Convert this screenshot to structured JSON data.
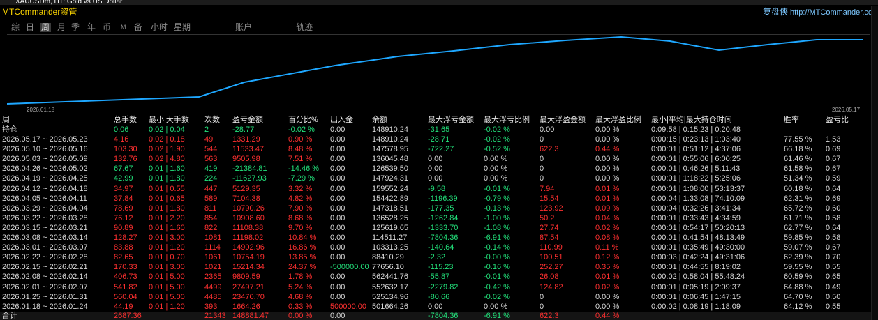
{
  "window_title": "XAUUSDm, H1:  Gold vs US Dollar",
  "header": {
    "title": "MTCommander资管",
    "brand": "复盘侠",
    "url": "http://MTCommander.com"
  },
  "tabs": [
    "综",
    "日",
    "周",
    "月",
    "季",
    "年",
    "币",
    "M",
    "备",
    "小时",
    "星期",
    "账户",
    "轨迹"
  ],
  "active_tab": 2,
  "chart": {
    "start_label": "2026.01.18",
    "end_label": "2026.05.17"
  },
  "table": {
    "columns": [
      "周",
      "总手数",
      "最小|大手数",
      "次数",
      "盈亏金额",
      "百分比%",
      "出入金",
      "余额",
      "最大浮亏金额",
      "最大浮亏比例",
      "最大浮盈金额",
      "最大浮盈比例",
      "最小|平均|最大持仓时间",
      "胜率",
      "盈亏比"
    ],
    "rows": [
      {
        "cells": [
          "持仓",
          "0.06",
          "0.02 | 0.04",
          "2",
          "-28.77",
          "-0.02 %",
          "0.00",
          "148910.24",
          "-31.65",
          "-0.02 %",
          "0.00",
          "0.00 %",
          "0:09:58 | 0:15:23 | 0:20:48",
          null,
          null
        ],
        "colors": [
          "#d8d8d8",
          "#22e07a",
          "#22e07a",
          "#22e07a",
          "#22e07a",
          "#22e07a",
          "#d8d8d8",
          "#d8d8d8",
          "#22e07a",
          "#22e07a",
          "#d8d8d8",
          "#d8d8d8",
          "#d8d8d8",
          null,
          null
        ]
      },
      {
        "cells": [
          "2026.05.17 ~ 2026.05.23",
          "4.16",
          "0.02 | 0.18",
          "49",
          "1331.29",
          "0.90 %",
          "0.00",
          "148910.24",
          "-28.71",
          "-0.02 %",
          "0",
          "0.00 %",
          "0:00:15 | 0:23:13 | 1:03:40",
          "77.55 %",
          "1.53"
        ],
        "colors": [
          "#d8d8d8",
          "#ff3030",
          "#ff3030",
          "#ff3030",
          "#ff3030",
          "#ff3030",
          "#d8d8d8",
          "#d8d8d8",
          "#22e07a",
          "#22e07a",
          "#d8d8d8",
          "#d8d8d8",
          "#d8d8d8",
          "#d8d8d8",
          "#d8d8d8"
        ]
      },
      {
        "cells": [
          "2026.05.10 ~ 2026.05.16",
          "103.30",
          "0.02 | 1.90",
          "544",
          "11533.47",
          "8.48 %",
          "0.00",
          "147578.95",
          "-722.27",
          "-0.52 %",
          "622.3",
          "0.44 %",
          "0:00:01 | 0:51:12 | 4:37:06",
          "66.18 %",
          "0.69"
        ],
        "colors": [
          "#d8d8d8",
          "#ff3030",
          "#ff3030",
          "#ff3030",
          "#ff3030",
          "#ff3030",
          "#d8d8d8",
          "#d8d8d8",
          "#22e07a",
          "#22e07a",
          "#ff3030",
          "#ff3030",
          "#d8d8d8",
          "#d8d8d8",
          "#d8d8d8"
        ]
      },
      {
        "cells": [
          "2026.05.03 ~ 2026.05.09",
          "132.76",
          "0.02 | 4.80",
          "563",
          "9505.98",
          "7.51 %",
          "0.00",
          "136045.48",
          "0.00",
          "0.00 %",
          "0",
          "0.00 %",
          "0:00:01 | 0:55:06 | 6:00:25",
          "61.46 %",
          "0.67"
        ],
        "colors": [
          "#d8d8d8",
          "#ff3030",
          "#ff3030",
          "#ff3030",
          "#ff3030",
          "#ff3030",
          "#d8d8d8",
          "#d8d8d8",
          "#d8d8d8",
          "#d8d8d8",
          "#d8d8d8",
          "#d8d8d8",
          "#d8d8d8",
          "#d8d8d8",
          "#d8d8d8"
        ]
      },
      {
        "cells": [
          "2026.04.26 ~ 2026.05.02",
          "67.67",
          "0.01 | 1.60",
          "419",
          "-21384.81",
          "-14.46 %",
          "0.00",
          "126539.50",
          "0.00",
          "0.00 %",
          "0",
          "0.00 %",
          "0:00:01 | 0:46:26 | 5:11:43",
          "61.58 %",
          "0.67"
        ],
        "colors": [
          "#d8d8d8",
          "#22e07a",
          "#22e07a",
          "#22e07a",
          "#22e07a",
          "#22e07a",
          "#d8d8d8",
          "#d8d8d8",
          "#d8d8d8",
          "#d8d8d8",
          "#d8d8d8",
          "#d8d8d8",
          "#d8d8d8",
          "#d8d8d8",
          "#d8d8d8"
        ]
      },
      {
        "cells": [
          "2026.04.19 ~ 2026.04.25",
          "42.99",
          "0.01 | 1.80",
          "224",
          "-11627.93",
          "-7.29 %",
          "0.00",
          "147924.31",
          "0.00",
          "0.00 %",
          "0",
          "0.00 %",
          "0:00:01 | 1:18:22 | 5:25:06",
          "51.34 %",
          "0.59"
        ],
        "colors": [
          "#d8d8d8",
          "#22e07a",
          "#22e07a",
          "#22e07a",
          "#22e07a",
          "#22e07a",
          "#d8d8d8",
          "#d8d8d8",
          "#d8d8d8",
          "#d8d8d8",
          "#d8d8d8",
          "#d8d8d8",
          "#d8d8d8",
          "#d8d8d8",
          "#d8d8d8"
        ]
      },
      {
        "cells": [
          "2026.04.12 ~ 2026.04.18",
          "34.97",
          "0.01 | 0.55",
          "447",
          "5129.35",
          "3.32 %",
          "0.00",
          "159552.24",
          "-9.58",
          "-0.01 %",
          "7.94",
          "0.01 %",
          "0:00:01 | 1:08:00 | 53:13:37",
          "60.18 %",
          "0.64"
        ],
        "colors": [
          "#d8d8d8",
          "#ff3030",
          "#ff3030",
          "#ff3030",
          "#ff3030",
          "#ff3030",
          "#d8d8d8",
          "#d8d8d8",
          "#22e07a",
          "#22e07a",
          "#ff3030",
          "#ff3030",
          "#d8d8d8",
          "#d8d8d8",
          "#d8d8d8"
        ]
      },
      {
        "cells": [
          "2026.04.05 ~ 2026.04.11",
          "37.84",
          "0.01 | 0.65",
          "589",
          "7104.38",
          "4.82 %",
          "0.00",
          "154422.89",
          "-1196.39",
          "-0.79 %",
          "15.54",
          "0.01 %",
          "0:00:04 | 1:33:08 | 74:10:09",
          "62.31 %",
          "0.69"
        ],
        "colors": [
          "#d8d8d8",
          "#ff3030",
          "#ff3030",
          "#ff3030",
          "#ff3030",
          "#ff3030",
          "#d8d8d8",
          "#d8d8d8",
          "#22e07a",
          "#22e07a",
          "#ff3030",
          "#ff3030",
          "#d8d8d8",
          "#d8d8d8",
          "#d8d8d8"
        ]
      },
      {
        "cells": [
          "2026.03.29 ~ 2026.04.04",
          "78.69",
          "0.01 | 1.80",
          "811",
          "10790.26",
          "7.90 %",
          "0.00",
          "147318.51",
          "-177.35",
          "-0.13 %",
          "123.92",
          "0.09 %",
          "0:00:04 | 0:32:26 | 3:41:34",
          "65.72 %",
          "0.60"
        ],
        "colors": [
          "#d8d8d8",
          "#ff3030",
          "#ff3030",
          "#ff3030",
          "#ff3030",
          "#ff3030",
          "#d8d8d8",
          "#d8d8d8",
          "#22e07a",
          "#22e07a",
          "#ff3030",
          "#ff3030",
          "#d8d8d8",
          "#d8d8d8",
          "#d8d8d8"
        ]
      },
      {
        "cells": [
          "2026.03.22 ~ 2026.03.28",
          "76.12",
          "0.01 | 2.20",
          "854",
          "10908.60",
          "8.68 %",
          "0.00",
          "136528.25",
          "-1262.84",
          "-1.00 %",
          "50.2",
          "0.04 %",
          "0:00:01 | 0:33:43 | 4:34:59",
          "61.71 %",
          "0.58"
        ],
        "colors": [
          "#d8d8d8",
          "#ff3030",
          "#ff3030",
          "#ff3030",
          "#ff3030",
          "#ff3030",
          "#d8d8d8",
          "#d8d8d8",
          "#22e07a",
          "#22e07a",
          "#ff3030",
          "#ff3030",
          "#d8d8d8",
          "#d8d8d8",
          "#d8d8d8"
        ]
      },
      {
        "cells": [
          "2026.03.15 ~ 2026.03.21",
          "90.89",
          "0.01 | 1.60",
          "822",
          "11108.38",
          "9.70 %",
          "0.00",
          "125619.65",
          "-1333.70",
          "-1.08 %",
          "27.74",
          "0.02 %",
          "0:00:01 | 0:54:17 | 50:20:13",
          "62.77 %",
          "0.64"
        ],
        "colors": [
          "#d8d8d8",
          "#ff3030",
          "#ff3030",
          "#ff3030",
          "#ff3030",
          "#ff3030",
          "#d8d8d8",
          "#d8d8d8",
          "#22e07a",
          "#22e07a",
          "#ff3030",
          "#ff3030",
          "#d8d8d8",
          "#d8d8d8",
          "#d8d8d8"
        ]
      },
      {
        "cells": [
          "2026.03.08 ~ 2026.03.14",
          "128.27",
          "0.01 | 3.00",
          "1081",
          "11198.02",
          "10.84 %",
          "0.00",
          "114511.27",
          "-7804.36",
          "-6.91 %",
          "87.54",
          "0.08 %",
          "0:00:01 | 0:41:54 | 48:13:49",
          "59.85 %",
          "0.58"
        ],
        "colors": [
          "#d8d8d8",
          "#ff3030",
          "#ff3030",
          "#ff3030",
          "#ff3030",
          "#ff3030",
          "#d8d8d8",
          "#d8d8d8",
          "#22e07a",
          "#22e07a",
          "#ff3030",
          "#ff3030",
          "#d8d8d8",
          "#d8d8d8",
          "#d8d8d8"
        ]
      },
      {
        "cells": [
          "2026.03.01 ~ 2026.03.07",
          "83.88",
          "0.01 | 1.20",
          "1114",
          "14902.96",
          "16.86 %",
          "0.00",
          "103313.25",
          "-140.64",
          "-0.14 %",
          "110.99",
          "0.11 %",
          "0:00:01 | 0:35:49 | 49:30:00",
          "59.07 %",
          "0.67"
        ],
        "colors": [
          "#d8d8d8",
          "#ff3030",
          "#ff3030",
          "#ff3030",
          "#ff3030",
          "#ff3030",
          "#d8d8d8",
          "#d8d8d8",
          "#22e07a",
          "#22e07a",
          "#ff3030",
          "#ff3030",
          "#d8d8d8",
          "#d8d8d8",
          "#d8d8d8"
        ]
      },
      {
        "cells": [
          "2026.02.22 ~ 2026.02.28",
          "82.65",
          "0.01 | 0.70",
          "1061",
          "10754.19",
          "13.85 %",
          "0.00",
          "88410.29",
          "-2.32",
          "-0.00 %",
          "100.51",
          "0.12 %",
          "0:00:03 | 0:42:24 | 49:31:06",
          "62.39 %",
          "0.70"
        ],
        "colors": [
          "#d8d8d8",
          "#ff3030",
          "#ff3030",
          "#ff3030",
          "#ff3030",
          "#ff3030",
          "#d8d8d8",
          "#d8d8d8",
          "#22e07a",
          "#22e07a",
          "#ff3030",
          "#ff3030",
          "#d8d8d8",
          "#d8d8d8",
          "#d8d8d8"
        ]
      },
      {
        "cells": [
          "2026.02.15 ~ 2026.02.21",
          "170.33",
          "0.01 | 3.00",
          "1021",
          "15214.34",
          "24.37 %",
          "-500000.00",
          "77656.10",
          "-115.23",
          "-0.16 %",
          "252.27",
          "0.35 %",
          "0:00:01 | 0:44:55 | 8:19:02",
          "59.55 %",
          "0.55"
        ],
        "colors": [
          "#d8d8d8",
          "#ff3030",
          "#ff3030",
          "#ff3030",
          "#ff3030",
          "#ff3030",
          "#22e07a",
          "#d8d8d8",
          "#22e07a",
          "#22e07a",
          "#ff3030",
          "#ff3030",
          "#d8d8d8",
          "#d8d8d8",
          "#d8d8d8"
        ]
      },
      {
        "cells": [
          "2026.02.08 ~ 2026.02.14",
          "406.73",
          "0.01 | 5.00",
          "2365",
          "9809.59",
          "1.78 %",
          "0.00",
          "562441.76",
          "-55.87",
          "-0.01 %",
          "26.08",
          "0.01 %",
          "0:00:02 | 0:58:04 | 55:48:24",
          "60.59 %",
          "0.65"
        ],
        "colors": [
          "#d8d8d8",
          "#ff3030",
          "#ff3030",
          "#ff3030",
          "#ff3030",
          "#ff3030",
          "#d8d8d8",
          "#d8d8d8",
          "#22e07a",
          "#22e07a",
          "#ff3030",
          "#ff3030",
          "#d8d8d8",
          "#d8d8d8",
          "#d8d8d8"
        ]
      },
      {
        "cells": [
          "2026.02.01 ~ 2026.02.07",
          "541.82",
          "0.01 | 5.00",
          "4499",
          "27497.21",
          "5.24 %",
          "0.00",
          "552632.17",
          "-2279.82",
          "-0.42 %",
          "124.82",
          "0.02 %",
          "0:00:01 | 0:05:19 | 2:09:37",
          "64.88 %",
          "0.49"
        ],
        "colors": [
          "#d8d8d8",
          "#ff3030",
          "#ff3030",
          "#ff3030",
          "#ff3030",
          "#ff3030",
          "#d8d8d8",
          "#d8d8d8",
          "#22e07a",
          "#22e07a",
          "#ff3030",
          "#ff3030",
          "#d8d8d8",
          "#d8d8d8",
          "#d8d8d8"
        ]
      },
      {
        "cells": [
          "2026.01.25 ~ 2026.01.31",
          "560.04",
          "0.01 | 5.00",
          "4485",
          "23470.70",
          "4.68 %",
          "0.00",
          "525134.96",
          "-80.66",
          "-0.02 %",
          "0",
          "0.00 %",
          "0:00:01 | 0:06:45 | 1:47:15",
          "64.70 %",
          "0.50"
        ],
        "colors": [
          "#d8d8d8",
          "#ff3030",
          "#ff3030",
          "#ff3030",
          "#ff3030",
          "#ff3030",
          "#d8d8d8",
          "#d8d8d8",
          "#22e07a",
          "#22e07a",
          "#d8d8d8",
          "#d8d8d8",
          "#d8d8d8",
          "#d8d8d8",
          "#d8d8d8"
        ]
      },
      {
        "cells": [
          "2026.01.18 ~ 2026.01.24",
          "44.19",
          "0.01 | 1.20",
          "393",
          "1664.26",
          "0.33 %",
          "500000.00",
          "501664.26",
          "0.00",
          "0.00 %",
          "0",
          "0.00 %",
          "0:00:02 | 0:08:19 | 1:18:09",
          "64.12 %",
          "0.55"
        ],
        "colors": [
          "#d8d8d8",
          "#ff3030",
          "#ff3030",
          "#ff3030",
          "#ff3030",
          "#ff3030",
          "#ff3030",
          "#d8d8d8",
          "#d8d8d8",
          "#d8d8d8",
          "#d8d8d8",
          "#d8d8d8",
          "#d8d8d8",
          "#d8d8d8",
          "#d8d8d8"
        ]
      },
      {
        "cells": [
          "合计",
          "2687.36",
          null,
          "21343",
          "148881.47",
          "0.00 %",
          "0.00",
          null,
          "-7804.36",
          "-6.91 %",
          "622.3",
          "0.44 %",
          null,
          null,
          null
        ],
        "colors": [
          "#d8d8d8",
          "#ff3030",
          null,
          "#ff3030",
          "#ff3030",
          "#ff3030",
          "#d8d8d8",
          null,
          "#22e07a",
          "#22e07a",
          "#ff3030",
          "#ff3030",
          null,
          null,
          null
        ]
      }
    ]
  }
}
